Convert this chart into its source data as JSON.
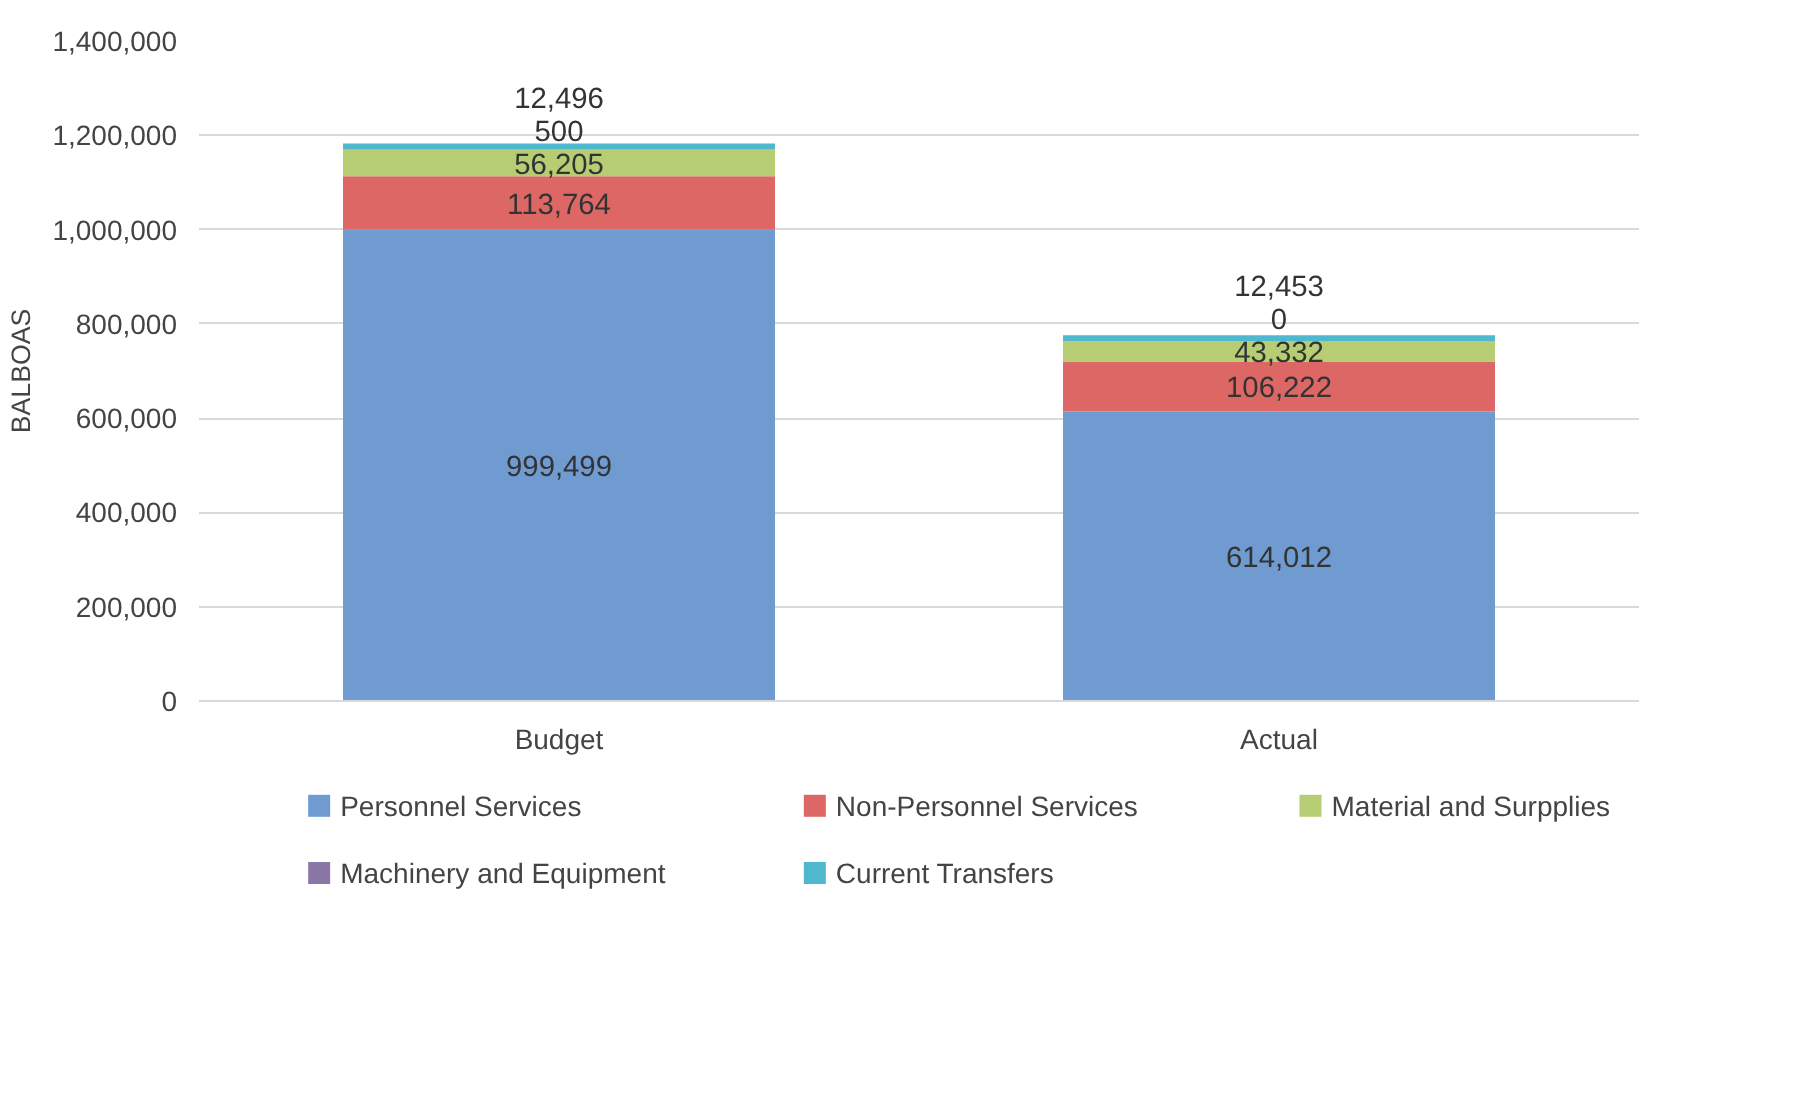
{
  "chart_data": {
    "type": "bar",
    "stacked": true,
    "ylabel": "BALBOAS",
    "categories": [
      "Budget",
      "Actual"
    ],
    "series": [
      {
        "name": "Personnel Services",
        "color": "#6f9bd1",
        "values": [
          999499,
          614012
        ],
        "value_labels": [
          "999,499",
          "614,012"
        ]
      },
      {
        "name": "Non-Personnel Services",
        "color": "#dc6764",
        "values": [
          113764,
          106222
        ],
        "value_labels": [
          "113,764",
          "106,222"
        ]
      },
      {
        "name": "Material and Surpplies",
        "color": "#b6cd73",
        "values": [
          56205,
          43332
        ],
        "value_labels": [
          "56,205",
          "43,332"
        ]
      },
      {
        "name": "Machinery and Equipment",
        "color": "#8a77a8",
        "values": [
          500,
          0
        ],
        "value_labels": [
          "500",
          "0"
        ]
      },
      {
        "name": "Current Transfers",
        "color": "#4fb8cf",
        "values": [
          12496,
          12453
        ],
        "value_labels": [
          "12,496",
          "12,453"
        ]
      }
    ],
    "ylim": [
      0,
      1400000
    ],
    "yticks": [
      {
        "value": 0,
        "label": "0"
      },
      {
        "value": 200000,
        "label": "200,000"
      },
      {
        "value": 400000,
        "label": "400,000"
      },
      {
        "value": 600000,
        "label": "600,000"
      },
      {
        "value": 800000,
        "label": "800,000"
      },
      {
        "value": 1000000,
        "label": "1,000,000"
      },
      {
        "value": 1200000,
        "label": "1,200,000"
      },
      {
        "value": 1400000,
        "label": "1,400,000"
      }
    ],
    "grid": "y",
    "legend": "bottom"
  }
}
